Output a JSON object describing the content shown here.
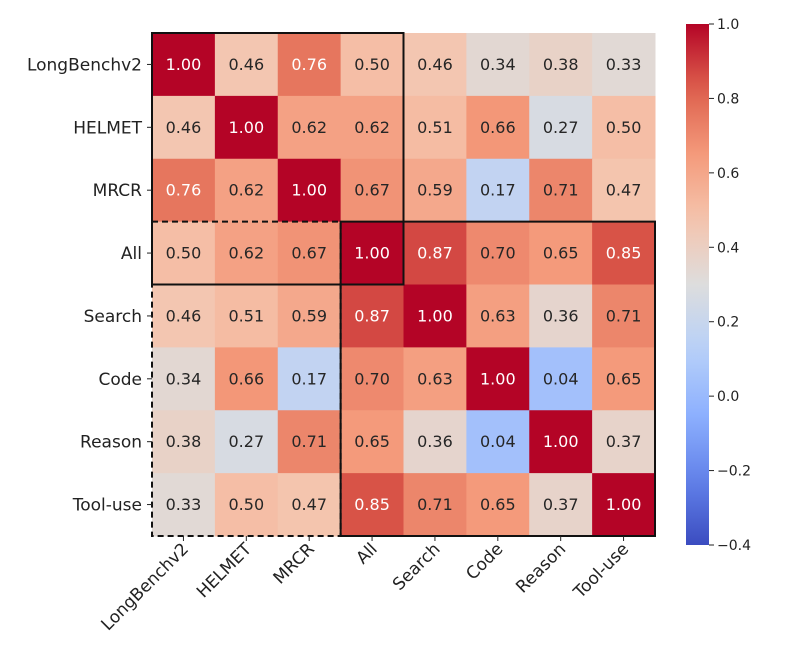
{
  "chart_data": {
    "type": "heatmap",
    "rows": [
      "LongBenchv2",
      "HELMET",
      "MRCR",
      "All",
      "Search",
      "Code",
      "Reason",
      "Tool-use"
    ],
    "columns": [
      "LongBenchv2",
      "HELMET",
      "MRCR",
      "All",
      "Search",
      "Code",
      "Reason",
      "Tool-use"
    ],
    "values": [
      [
        1.0,
        0.46,
        0.76,
        0.5,
        0.46,
        0.34,
        0.38,
        0.33
      ],
      [
        0.46,
        1.0,
        0.62,
        0.62,
        0.51,
        0.66,
        0.27,
        0.5
      ],
      [
        0.76,
        0.62,
        1.0,
        0.67,
        0.59,
        0.17,
        0.71,
        0.47
      ],
      [
        0.5,
        0.62,
        0.67,
        1.0,
        0.87,
        0.7,
        0.65,
        0.85
      ],
      [
        0.46,
        0.51,
        0.59,
        0.87,
        1.0,
        0.63,
        0.36,
        0.71
      ],
      [
        0.34,
        0.66,
        0.17,
        0.7,
        0.63,
        1.0,
        0.04,
        0.65
      ],
      [
        0.38,
        0.27,
        0.71,
        0.65,
        0.36,
        0.04,
        1.0,
        0.37
      ],
      [
        0.33,
        0.5,
        0.47,
        0.85,
        0.71,
        0.65,
        0.37,
        1.0
      ]
    ],
    "cell_labels": [
      [
        "1.00",
        "0.46",
        "0.76",
        "0.50",
        "0.46",
        "0.34",
        "0.38",
        "0.33"
      ],
      [
        "0.46",
        "1.00",
        "0.62",
        "0.62",
        "0.51",
        "0.66",
        "0.27",
        "0.50"
      ],
      [
        "0.76",
        "0.62",
        "1.00",
        "0.67",
        "0.59",
        "0.17",
        "0.71",
        "0.47"
      ],
      [
        "0.50",
        "0.62",
        "0.67",
        "1.00",
        "0.87",
        "0.70",
        "0.65",
        "0.85"
      ],
      [
        "0.46",
        "0.51",
        "0.59",
        "0.87",
        "1.00",
        "0.63",
        "0.36",
        "0.71"
      ],
      [
        "0.34",
        "0.66",
        "0.17",
        "0.70",
        "0.63",
        "1.00",
        "0.04",
        "0.65"
      ],
      [
        "0.38",
        "0.27",
        "0.71",
        "0.65",
        "0.36",
        "0.04",
        "1.00",
        "0.37"
      ],
      [
        "0.33",
        "0.50",
        "0.47",
        "0.85",
        "0.71",
        "0.65",
        "0.37",
        "1.00"
      ]
    ],
    "colormap": "coolwarm",
    "vmin": -0.4,
    "vmax": 1.0,
    "colorbar_ticks": [
      1.0,
      0.8,
      0.6,
      0.4,
      0.2,
      0.0,
      -0.2,
      -0.4
    ],
    "colorbar_tick_labels": [
      "1.0",
      "0.8",
      "0.6",
      "0.4",
      "0.2",
      "0.0",
      "−0.2",
      "−0.4"
    ],
    "highlight_boxes": [
      {
        "rows": [
          0,
          3
        ],
        "cols": [
          0,
          3
        ],
        "style": "solid"
      },
      {
        "rows": [
          3,
          7
        ],
        "cols": [
          3,
          7
        ],
        "style": "solid"
      },
      {
        "rows": [
          3,
          7
        ],
        "cols": [
          0,
          2
        ],
        "style": "dashed"
      }
    ],
    "title": "",
    "xlabel": "",
    "ylabel": ""
  }
}
